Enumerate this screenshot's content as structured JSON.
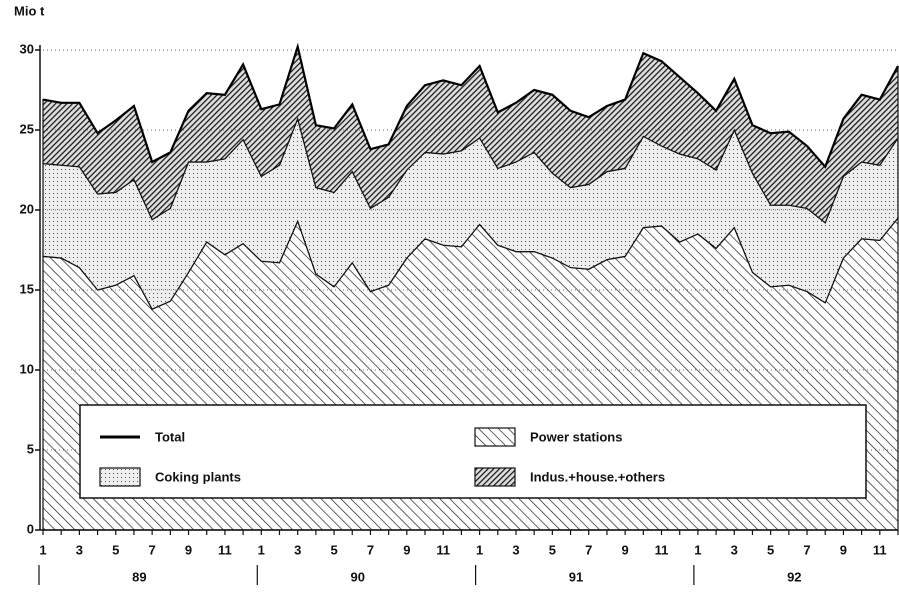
{
  "chart_data": {
    "type": "stacked-area",
    "y_label": "Mio t",
    "categories": [
      "1",
      null,
      "3",
      null,
      "5",
      null,
      "7",
      null,
      "9",
      null,
      "11",
      null,
      "1",
      null,
      "3",
      null,
      "5",
      null,
      "7",
      null,
      "9",
      null,
      "11",
      null,
      "1",
      null,
      "3",
      null,
      "5",
      null,
      "7",
      null,
      "9",
      null,
      "11",
      null,
      "1",
      null,
      "3",
      null,
      "5",
      null,
      "7",
      null,
      "9",
      null,
      "11",
      null
    ],
    "years": [
      "89",
      "90",
      "91",
      "92"
    ],
    "series": [
      {
        "name": "Power stations",
        "color": "#111111",
        "pattern": "hatch",
        "values": [
          17.1,
          17.0,
          16.4,
          15.0,
          15.3,
          15.9,
          13.8,
          14.3,
          16.1,
          18.0,
          17.2,
          17.9,
          16.8,
          16.7,
          19.3,
          16.0,
          15.2,
          16.7,
          14.9,
          15.3,
          17.0,
          18.2,
          17.8,
          17.7,
          19.1,
          17.8,
          17.4,
          17.4,
          17.0,
          16.4,
          16.3,
          16.9,
          17.1,
          18.9,
          19.0,
          18.0,
          18.5,
          17.6,
          18.9,
          16.1,
          15.2,
          15.3,
          14.9,
          14.2,
          17.0,
          18.2,
          18.1,
          19.5
        ]
      },
      {
        "name": "Coking plants",
        "color": "#111111",
        "pattern": "dots",
        "values": [
          5.8,
          5.8,
          6.3,
          6.0,
          5.8,
          6.0,
          5.6,
          5.8,
          6.9,
          5.0,
          6.0,
          6.5,
          5.3,
          6.1,
          6.4,
          5.4,
          5.9,
          5.7,
          5.2,
          5.5,
          5.5,
          5.4,
          5.7,
          6.0,
          5.4,
          4.8,
          5.6,
          6.2,
          5.3,
          5.0,
          5.3,
          5.5,
          5.5,
          5.7,
          5.0,
          5.5,
          4.7,
          4.9,
          6.1,
          6.2,
          5.1,
          5.0,
          5.2,
          5.0,
          5.1,
          4.8,
          4.7,
          5.0
        ]
      },
      {
        "name": "Indus.+house.+others",
        "color": "#111111",
        "pattern": "dense-hatch",
        "values": [
          4.0,
          3.9,
          4.0,
          3.8,
          4.5,
          4.6,
          3.6,
          3.5,
          3.2,
          4.3,
          4.0,
          4.7,
          4.2,
          3.8,
          4.5,
          3.9,
          4.0,
          4.2,
          3.7,
          3.3,
          4.0,
          4.2,
          4.6,
          4.1,
          4.5,
          3.5,
          3.7,
          3.9,
          4.9,
          4.8,
          4.2,
          4.1,
          4.3,
          5.2,
          5.3,
          4.8,
          4.1,
          3.7,
          3.2,
          3.0,
          4.5,
          4.6,
          3.9,
          3.5,
          3.6,
          4.2,
          4.1,
          4.5
        ]
      }
    ],
    "total": {
      "name": "Total",
      "color": "#000000",
      "values": [
        26.9,
        26.7,
        26.7,
        24.8,
        25.6,
        26.5,
        23.0,
        23.6,
        26.2,
        27.3,
        27.2,
        29.1,
        26.3,
        26.6,
        30.2,
        25.3,
        25.1,
        26.6,
        23.8,
        24.1,
        26.5,
        27.8,
        28.1,
        27.8,
        29.0,
        26.1,
        26.7,
        27.5,
        27.2,
        26.2,
        25.8,
        26.5,
        26.9,
        29.8,
        29.3,
        28.3,
        27.3,
        26.2,
        28.2,
        25.3,
        24.8,
        24.9,
        24.0,
        22.7,
        25.7,
        27.2,
        26.9,
        29.0
      ]
    },
    "ylim": [
      0,
      30
    ],
    "yticks": [
      0,
      5,
      10,
      15,
      20,
      25,
      30
    ],
    "grid": true
  }
}
